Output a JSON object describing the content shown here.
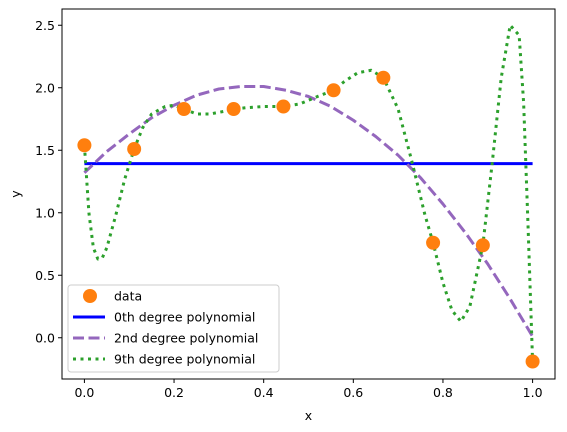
{
  "chart_data": {
    "type": "scatter",
    "xlabel": "x",
    "ylabel": "y",
    "xlim": [
      -0.05,
      1.05
    ],
    "ylim": [
      -0.33,
      2.63
    ],
    "x_ticks": [
      0.0,
      0.2,
      0.4,
      0.6,
      0.8,
      1.0
    ],
    "x_tick_labels": [
      "0.0",
      "0.2",
      "0.4",
      "0.6",
      "0.8",
      "1.0"
    ],
    "y_ticks": [
      0.0,
      0.5,
      1.0,
      1.5,
      2.0,
      2.5
    ],
    "y_tick_labels": [
      "0.0",
      "0.5",
      "1.0",
      "1.5",
      "2.0",
      "2.5"
    ],
    "grid": false,
    "legend_position": "lower-left",
    "series": [
      {
        "name": "data",
        "kind": "scatter",
        "color": "#ff7f0e",
        "x": [
          0.0,
          0.111,
          0.222,
          0.333,
          0.444,
          0.556,
          0.667,
          0.778,
          0.889,
          1.0
        ],
        "y": [
          1.54,
          1.51,
          1.83,
          1.83,
          1.85,
          1.98,
          2.08,
          0.76,
          0.74,
          -0.19
        ]
      },
      {
        "name": "0th degree polynomial",
        "kind": "line",
        "style": "solid",
        "color": "#0000ff",
        "x": [
          0.0,
          1.0
        ],
        "y": [
          1.393,
          1.393
        ]
      },
      {
        "name": "2nd degree polynomial",
        "kind": "line",
        "style": "dashed",
        "color": "#9467bd",
        "x": [
          0.0,
          0.05,
          0.1,
          0.15,
          0.2,
          0.25,
          0.3,
          0.35,
          0.4,
          0.45,
          0.5,
          0.55,
          0.6,
          0.65,
          0.7,
          0.75,
          0.8,
          0.85,
          0.9,
          0.95,
          1.0
        ],
        "y": [
          1.32,
          1.49,
          1.63,
          1.76,
          1.86,
          1.94,
          1.99,
          2.01,
          2.01,
          1.98,
          1.93,
          1.85,
          1.74,
          1.61,
          1.46,
          1.28,
          1.07,
          0.84,
          0.59,
          0.31,
          0.01
        ]
      },
      {
        "name": "9th degree polynomial",
        "kind": "line",
        "style": "dotted",
        "color": "#2ca02c",
        "x": [
          0.0,
          0.01,
          0.02,
          0.03,
          0.04,
          0.05,
          0.07,
          0.09,
          0.111,
          0.13,
          0.15,
          0.18,
          0.2,
          0.222,
          0.25,
          0.28,
          0.31,
          0.333,
          0.36,
          0.4,
          0.444,
          0.48,
          0.52,
          0.556,
          0.58,
          0.61,
          0.64,
          0.667,
          0.7,
          0.73,
          0.76,
          0.778,
          0.8,
          0.82,
          0.84,
          0.86,
          0.889,
          0.91,
          0.93,
          0.95,
          0.97,
          0.98,
          0.99,
          1.0
        ],
        "y": [
          1.54,
          1.0,
          0.72,
          0.63,
          0.64,
          0.72,
          0.98,
          1.27,
          1.51,
          1.68,
          1.79,
          1.85,
          1.86,
          1.83,
          1.79,
          1.79,
          1.81,
          1.83,
          1.84,
          1.85,
          1.85,
          1.87,
          1.93,
          1.98,
          2.05,
          2.12,
          2.14,
          2.08,
          1.83,
          1.42,
          0.98,
          0.76,
          0.44,
          0.22,
          0.13,
          0.25,
          0.74,
          1.4,
          2.08,
          2.5,
          2.42,
          1.88,
          0.88,
          -0.19
        ]
      }
    ]
  }
}
